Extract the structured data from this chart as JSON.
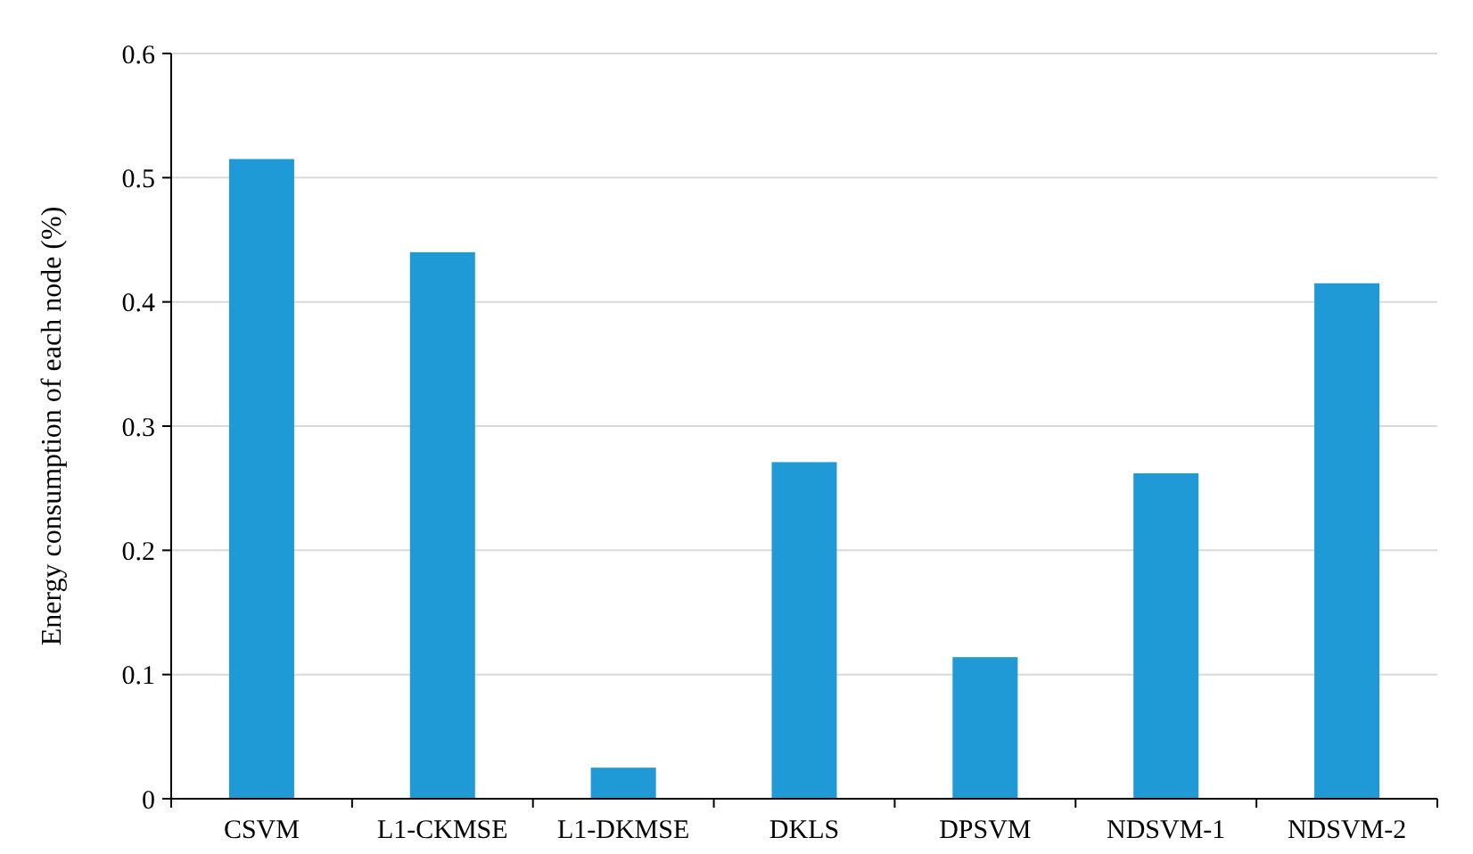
{
  "chart_data": {
    "type": "bar",
    "ylabel": "Energy consumption of each node (%)",
    "categories": [
      "CSVM",
      "L1-CKMSE",
      "L1-DKMSE",
      "DKLS",
      "DPSVM",
      "NDSVM-1",
      "NDSVM-2"
    ],
    "values": [
      0.515,
      0.44,
      0.025,
      0.271,
      0.114,
      0.262,
      0.415
    ],
    "color": "#1f9ad6",
    "ylim": [
      0,
      0.6
    ],
    "yticks": [
      0,
      0.1,
      0.2,
      0.3,
      0.4,
      0.5,
      0.6
    ],
    "grid": "y"
  }
}
